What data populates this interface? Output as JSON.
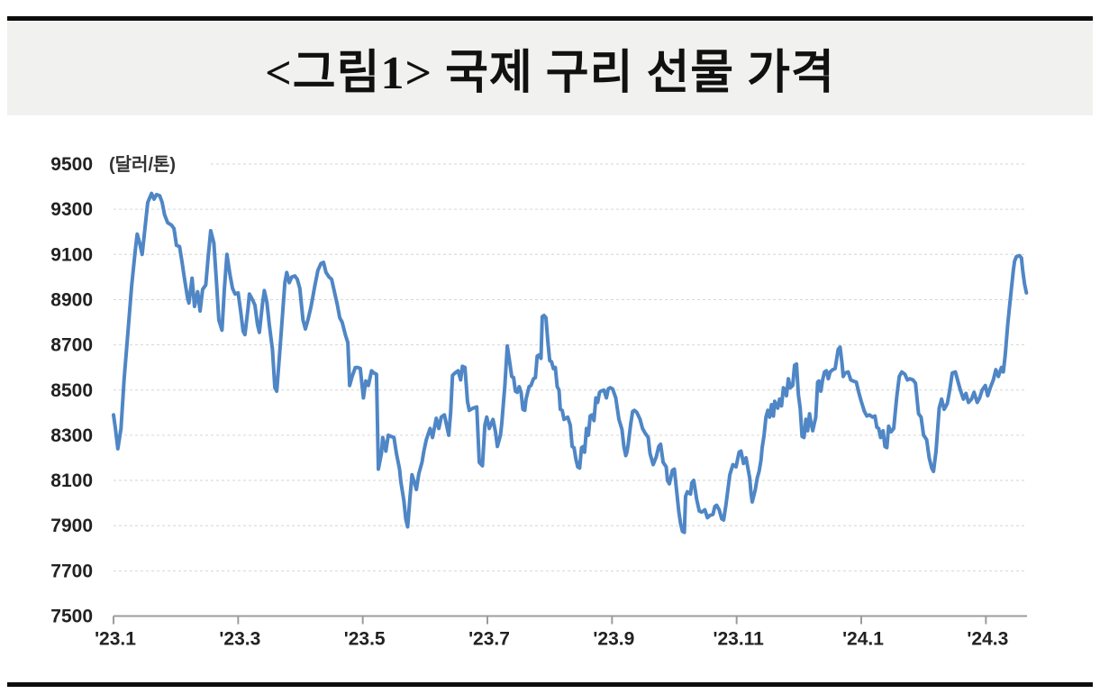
{
  "title": "<그림1> 국제 구리 선물 가격",
  "chart_data": {
    "type": "line",
    "title": "<그림1> 국제 구리 선물 가격",
    "series_name": "국제 구리 선물 가격",
    "unit_label": "(달러/톤)",
    "xlabel": "",
    "ylabel": "",
    "x_unit": "months since 2023-01",
    "xlim": [
      0,
      14.66
    ],
    "ylim": [
      7500,
      9500
    ],
    "y_ticks": [
      7500,
      7700,
      7900,
      8100,
      8300,
      8500,
      8700,
      8900,
      9100,
      9300,
      9500
    ],
    "x_tick_positions": [
      0,
      2,
      4,
      6,
      8,
      10,
      12,
      14
    ],
    "x_tick_labels": [
      "'23.1",
      "'23.3",
      "'23.5",
      "'23.7",
      "'23.9",
      "'23.11",
      "'24.1",
      "'24.3"
    ],
    "grid": "horizontal-dashed",
    "legend": "none",
    "line_color": "#4f86c5",
    "axis_color": "#9c9c9c",
    "label_color": "#222222",
    "grid_color": "#d6d6d2",
    "points": [
      [
        0,
        8390
      ],
      [
        0.03,
        8330
      ],
      [
        0.07,
        8240
      ],
      [
        0.12,
        8330
      ],
      [
        0.17,
        8550
      ],
      [
        0.23,
        8750
      ],
      [
        0.29,
        8960
      ],
      [
        0.35,
        9120
      ],
      [
        0.38,
        9190
      ],
      [
        0.42,
        9150
      ],
      [
        0.46,
        9100
      ],
      [
        0.51,
        9230
      ],
      [
        0.55,
        9330
      ],
      [
        0.61,
        9370
      ],
      [
        0.65,
        9345
      ],
      [
        0.69,
        9365
      ],
      [
        0.74,
        9360
      ],
      [
        0.78,
        9330
      ],
      [
        0.82,
        9275
      ],
      [
        0.87,
        9240
      ],
      [
        0.93,
        9230
      ],
      [
        0.97,
        9215
      ],
      [
        1.01,
        9140
      ],
      [
        1.06,
        9135
      ],
      [
        1.1,
        9065
      ],
      [
        1.14,
        8990
      ],
      [
        1.19,
        8905
      ],
      [
        1.21,
        8885
      ],
      [
        1.26,
        8995
      ],
      [
        1.3,
        8870
      ],
      [
        1.35,
        8935
      ],
      [
        1.39,
        8850
      ],
      [
        1.43,
        8945
      ],
      [
        1.48,
        8965
      ],
      [
        1.52,
        9090
      ],
      [
        1.56,
        9205
      ],
      [
        1.61,
        9150
      ],
      [
        1.65,
        8990
      ],
      [
        1.69,
        8810
      ],
      [
        1.74,
        8765
      ],
      [
        1.78,
        8950
      ],
      [
        1.82,
        9100
      ],
      [
        1.87,
        9010
      ],
      [
        1.91,
        8950
      ],
      [
        1.95,
        8925
      ],
      [
        2,
        8930
      ],
      [
        2.04,
        8850
      ],
      [
        2.08,
        8760
      ],
      [
        2.11,
        8745
      ],
      [
        2.16,
        8865
      ],
      [
        2.18,
        8925
      ],
      [
        2.23,
        8900
      ],
      [
        2.27,
        8875
      ],
      [
        2.31,
        8790
      ],
      [
        2.34,
        8755
      ],
      [
        2.39,
        8880
      ],
      [
        2.42,
        8940
      ],
      [
        2.46,
        8890
      ],
      [
        2.5,
        8790
      ],
      [
        2.55,
        8680
      ],
      [
        2.59,
        8510
      ],
      [
        2.62,
        8495
      ],
      [
        2.66,
        8640
      ],
      [
        2.7,
        8790
      ],
      [
        2.75,
        8975
      ],
      [
        2.78,
        9020
      ],
      [
        2.82,
        8975
      ],
      [
        2.86,
        9000
      ],
      [
        2.91,
        9005
      ],
      [
        2.95,
        8990
      ],
      [
        2.99,
        8950
      ],
      [
        3.04,
        8810
      ],
      [
        3.08,
        8770
      ],
      [
        3.12,
        8810
      ],
      [
        3.17,
        8870
      ],
      [
        3.23,
        8960
      ],
      [
        3.28,
        9030
      ],
      [
        3.33,
        9060
      ],
      [
        3.37,
        9065
      ],
      [
        3.41,
        9020
      ],
      [
        3.46,
        9000
      ],
      [
        3.5,
        8990
      ],
      [
        3.54,
        8940
      ],
      [
        3.59,
        8880
      ],
      [
        3.63,
        8820
      ],
      [
        3.67,
        8800
      ],
      [
        3.72,
        8745
      ],
      [
        3.76,
        8710
      ],
      [
        3.79,
        8520
      ],
      [
        3.83,
        8560
      ],
      [
        3.88,
        8600
      ],
      [
        3.92,
        8600
      ],
      [
        3.96,
        8595
      ],
      [
        4.01,
        8465
      ],
      [
        4.05,
        8540
      ],
      [
        4.09,
        8520
      ],
      [
        4.14,
        8585
      ],
      [
        4.18,
        8575
      ],
      [
        4.22,
        8570
      ],
      [
        4.25,
        8150
      ],
      [
        4.3,
        8220
      ],
      [
        4.32,
        8290
      ],
      [
        4.37,
        8230
      ],
      [
        4.41,
        8300
      ],
      [
        4.45,
        8295
      ],
      [
        4.5,
        8290
      ],
      [
        4.54,
        8220
      ],
      [
        4.59,
        8150
      ],
      [
        4.61,
        8095
      ],
      [
        4.66,
        8010
      ],
      [
        4.69,
        7930
      ],
      [
        4.72,
        7895
      ],
      [
        4.76,
        8030
      ],
      [
        4.79,
        8125
      ],
      [
        4.83,
        8090
      ],
      [
        4.86,
        8060
      ],
      [
        4.9,
        8130
      ],
      [
        4.95,
        8180
      ],
      [
        4.98,
        8230
      ],
      [
        5.02,
        8280
      ],
      [
        5.08,
        8330
      ],
      [
        5.12,
        8290
      ],
      [
        5.18,
        8375
      ],
      [
        5.22,
        8330
      ],
      [
        5.26,
        8380
      ],
      [
        5.31,
        8390
      ],
      [
        5.35,
        8340
      ],
      [
        5.38,
        8300
      ],
      [
        5.41,
        8400
      ],
      [
        5.44,
        8565
      ],
      [
        5.48,
        8575
      ],
      [
        5.53,
        8585
      ],
      [
        5.57,
        8545
      ],
      [
        5.6,
        8605
      ],
      [
        5.64,
        8600
      ],
      [
        5.68,
        8450
      ],
      [
        5.71,
        8410
      ],
      [
        5.77,
        8420
      ],
      [
        5.83,
        8425
      ],
      [
        5.87,
        8180
      ],
      [
        5.92,
        8165
      ],
      [
        5.96,
        8345
      ],
      [
        5.99,
        8380
      ],
      [
        6.03,
        8330
      ],
      [
        6.09,
        8370
      ],
      [
        6.13,
        8315
      ],
      [
        6.16,
        8250
      ],
      [
        6.21,
        8300
      ],
      [
        6.23,
        8350
      ],
      [
        6.28,
        8520
      ],
      [
        6.32,
        8695
      ],
      [
        6.36,
        8620
      ],
      [
        6.39,
        8560
      ],
      [
        6.42,
        8555
      ],
      [
        6.45,
        8495
      ],
      [
        6.48,
        8490
      ],
      [
        6.51,
        8515
      ],
      [
        6.54,
        8490
      ],
      [
        6.57,
        8415
      ],
      [
        6.6,
        8410
      ],
      [
        6.62,
        8460
      ],
      [
        6.67,
        8515
      ],
      [
        6.7,
        8520
      ],
      [
        6.74,
        8550
      ],
      [
        6.77,
        8555
      ],
      [
        6.8,
        8650
      ],
      [
        6.83,
        8655
      ],
      [
        6.86,
        8640
      ],
      [
        6.88,
        8825
      ],
      [
        6.91,
        8830
      ],
      [
        6.94,
        8820
      ],
      [
        6.97,
        8715
      ],
      [
        7,
        8630
      ],
      [
        7.03,
        8625
      ],
      [
        7.06,
        8595
      ],
      [
        7.09,
        8600
      ],
      [
        7.12,
        8515
      ],
      [
        7.15,
        8500
      ],
      [
        7.17,
        8415
      ],
      [
        7.2,
        8410
      ],
      [
        7.23,
        8370
      ],
      [
        7.26,
        8375
      ],
      [
        7.29,
        8380
      ],
      [
        7.33,
        8345
      ],
      [
        7.36,
        8250
      ],
      [
        7.39,
        8245
      ],
      [
        7.42,
        8195
      ],
      [
        7.45,
        8160
      ],
      [
        7.48,
        8155
      ],
      [
        7.51,
        8245
      ],
      [
        7.54,
        8250
      ],
      [
        7.56,
        8225
      ],
      [
        7.59,
        8330
      ],
      [
        7.62,
        8300
      ],
      [
        7.65,
        8385
      ],
      [
        7.68,
        8390
      ],
      [
        7.71,
        8365
      ],
      [
        7.74,
        8465
      ],
      [
        7.77,
        8445
      ],
      [
        7.8,
        8490
      ],
      [
        7.82,
        8495
      ],
      [
        7.87,
        8500
      ],
      [
        7.91,
        8465
      ],
      [
        7.94,
        8505
      ],
      [
        7.97,
        8510
      ],
      [
        8.01,
        8505
      ],
      [
        8.06,
        8465
      ],
      [
        8.11,
        8370
      ],
      [
        8.16,
        8325
      ],
      [
        8.19,
        8250
      ],
      [
        8.22,
        8210
      ],
      [
        8.24,
        8225
      ],
      [
        8.26,
        8260
      ],
      [
        8.3,
        8350
      ],
      [
        8.33,
        8405
      ],
      [
        8.36,
        8410
      ],
      [
        8.4,
        8400
      ],
      [
        8.45,
        8370
      ],
      [
        8.49,
        8330
      ],
      [
        8.53,
        8310
      ],
      [
        8.58,
        8290
      ],
      [
        8.61,
        8220
      ],
      [
        8.66,
        8170
      ],
      [
        8.71,
        8205
      ],
      [
        8.75,
        8250
      ],
      [
        8.78,
        8260
      ],
      [
        8.82,
        8180
      ],
      [
        8.87,
        8160
      ],
      [
        8.89,
        8100
      ],
      [
        8.92,
        8085
      ],
      [
        8.97,
        8145
      ],
      [
        9,
        8150
      ],
      [
        9.04,
        8045
      ],
      [
        9.07,
        7965
      ],
      [
        9.1,
        7910
      ],
      [
        9.13,
        7875
      ],
      [
        9.16,
        7870
      ],
      [
        9.18,
        8030
      ],
      [
        9.21,
        8050
      ],
      [
        9.26,
        8040
      ],
      [
        9.28,
        8090
      ],
      [
        9.31,
        8100
      ],
      [
        9.36,
        8015
      ],
      [
        9.4,
        7965
      ],
      [
        9.44,
        7960
      ],
      [
        9.49,
        7970
      ],
      [
        9.53,
        7935
      ],
      [
        9.57,
        7945
      ],
      [
        9.62,
        7950
      ],
      [
        9.65,
        7985
      ],
      [
        9.68,
        7990
      ],
      [
        9.72,
        7970
      ],
      [
        9.76,
        7930
      ],
      [
        9.79,
        7925
      ],
      [
        9.83,
        7995
      ],
      [
        9.86,
        8060
      ],
      [
        9.89,
        8125
      ],
      [
        9.94,
        8170
      ],
      [
        9.97,
        8165
      ],
      [
        9.99,
        8160
      ],
      [
        10.04,
        8225
      ],
      [
        10.07,
        8230
      ],
      [
        10.11,
        8175
      ],
      [
        10.15,
        8200
      ],
      [
        10.21,
        8110
      ],
      [
        10.23,
        8045
      ],
      [
        10.25,
        8005
      ],
      [
        10.3,
        8060
      ],
      [
        10.33,
        8110
      ],
      [
        10.36,
        8140
      ],
      [
        10.39,
        8190
      ],
      [
        10.41,
        8245
      ],
      [
        10.44,
        8300
      ],
      [
        10.47,
        8380
      ],
      [
        10.5,
        8410
      ],
      [
        10.53,
        8380
      ],
      [
        10.56,
        8435
      ],
      [
        10.59,
        8385
      ],
      [
        10.61,
        8450
      ],
      [
        10.66,
        8420
      ],
      [
        10.69,
        8460
      ],
      [
        10.72,
        8430
      ],
      [
        10.75,
        8510
      ],
      [
        10.78,
        8500
      ],
      [
        10.8,
        8475
      ],
      [
        10.83,
        8550
      ],
      [
        10.86,
        8510
      ],
      [
        10.9,
        8520
      ],
      [
        10.93,
        8610
      ],
      [
        10.96,
        8615
      ],
      [
        10.99,
        8480
      ],
      [
        11.02,
        8420
      ],
      [
        11.05,
        8295
      ],
      [
        11.08,
        8290
      ],
      [
        11.11,
        8370
      ],
      [
        11.14,
        8320
      ],
      [
        11.17,
        8395
      ],
      [
        11.19,
        8360
      ],
      [
        11.22,
        8320
      ],
      [
        11.27,
        8380
      ],
      [
        11.3,
        8535
      ],
      [
        11.32,
        8540
      ],
      [
        11.35,
        8495
      ],
      [
        11.38,
        8545
      ],
      [
        11.41,
        8580
      ],
      [
        11.44,
        8585
      ],
      [
        11.47,
        8550
      ],
      [
        11.5,
        8580
      ],
      [
        11.54,
        8590
      ],
      [
        11.58,
        8595
      ],
      [
        11.63,
        8680
      ],
      [
        11.66,
        8690
      ],
      [
        11.69,
        8620
      ],
      [
        11.71,
        8560
      ],
      [
        11.74,
        8575
      ],
      [
        11.79,
        8580
      ],
      [
        11.83,
        8545
      ],
      [
        11.87,
        8540
      ],
      [
        11.92,
        8535
      ],
      [
        11.96,
        8490
      ],
      [
        12,
        8450
      ],
      [
        12.05,
        8405
      ],
      [
        12.09,
        8385
      ],
      [
        12.13,
        8390
      ],
      [
        12.18,
        8380
      ],
      [
        12.22,
        8385
      ],
      [
        12.25,
        8335
      ],
      [
        12.28,
        8330
      ],
      [
        12.31,
        8290
      ],
      [
        12.35,
        8320
      ],
      [
        12.38,
        8250
      ],
      [
        12.41,
        8245
      ],
      [
        12.44,
        8340
      ],
      [
        12.48,
        8315
      ],
      [
        12.52,
        8330
      ],
      [
        12.57,
        8470
      ],
      [
        12.61,
        8560
      ],
      [
        12.65,
        8580
      ],
      [
        12.7,
        8570
      ],
      [
        12.74,
        8545
      ],
      [
        12.78,
        8550
      ],
      [
        12.83,
        8545
      ],
      [
        12.87,
        8530
      ],
      [
        12.92,
        8395
      ],
      [
        12.96,
        8380
      ],
      [
        13,
        8300
      ],
      [
        13.05,
        8280
      ],
      [
        13.09,
        8200
      ],
      [
        13.13,
        8155
      ],
      [
        13.16,
        8140
      ],
      [
        13.2,
        8230
      ],
      [
        13.25,
        8420
      ],
      [
        13.29,
        8460
      ],
      [
        13.33,
        8415
      ],
      [
        13.38,
        8440
      ],
      [
        13.42,
        8500
      ],
      [
        13.46,
        8575
      ],
      [
        13.51,
        8580
      ],
      [
        13.55,
        8540
      ],
      [
        13.59,
        8500
      ],
      [
        13.64,
        8460
      ],
      [
        13.68,
        8485
      ],
      [
        13.72,
        8445
      ],
      [
        13.77,
        8460
      ],
      [
        13.81,
        8490
      ],
      [
        13.86,
        8445
      ],
      [
        13.9,
        8465
      ],
      [
        13.94,
        8500
      ],
      [
        13.99,
        8520
      ],
      [
        14.03,
        8475
      ],
      [
        14.07,
        8510
      ],
      [
        14.12,
        8545
      ],
      [
        14.16,
        8590
      ],
      [
        14.2,
        8560
      ],
      [
        14.25,
        8600
      ],
      [
        14.28,
        8580
      ],
      [
        14.31,
        8655
      ],
      [
        14.35,
        8790
      ],
      [
        14.38,
        8870
      ],
      [
        14.41,
        8950
      ],
      [
        14.44,
        9030
      ],
      [
        14.46,
        9070
      ],
      [
        14.49,
        9090
      ],
      [
        14.54,
        9095
      ],
      [
        14.57,
        9085
      ],
      [
        14.59,
        9030
      ],
      [
        14.62,
        8970
      ],
      [
        14.65,
        8930
      ]
    ]
  }
}
